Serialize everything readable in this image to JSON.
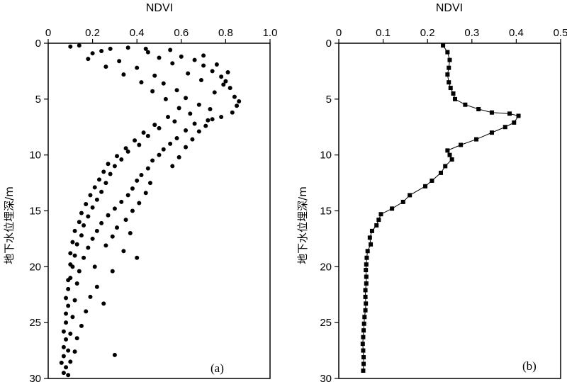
{
  "chart_data": [
    {
      "type": "scatter",
      "panel_label": "(a)",
      "xlabel": "NDVI",
      "ylabel": "地下水位埋深/m",
      "xlim": [
        0,
        1.0
      ],
      "ylim": [
        0,
        30
      ],
      "x_ticks": [
        "0",
        "0.2",
        "0.4",
        "0.6",
        "0.8",
        "1.0"
      ],
      "x_tick_values": [
        0,
        0.2,
        0.4,
        0.6,
        0.8,
        1.0
      ],
      "y_ticks": [
        "0",
        "5",
        "10",
        "15",
        "20",
        "25",
        "30"
      ],
      "y_tick_values": [
        0,
        5,
        10,
        15,
        20,
        25,
        30
      ],
      "y_inverted": true,
      "x_axis_position": "top",
      "grid": false,
      "marker_color": "#000000",
      "series": [
        {
          "points": [
            [
              0.1,
              0.3
            ],
            [
              0.28,
              0.5
            ],
            [
              0.45,
              0.8
            ],
            [
              0.55,
              0.6
            ],
            [
              0.6,
              1.2
            ],
            [
              0.66,
              1.5
            ],
            [
              0.7,
              2.0
            ],
            [
              0.74,
              2.5
            ],
            [
              0.78,
              3.0
            ],
            [
              0.8,
              3.4
            ],
            [
              0.82,
              4.0
            ],
            [
              0.84,
              4.8
            ],
            [
              0.85,
              5.6
            ],
            [
              0.83,
              6.2
            ],
            [
              0.78,
              6.6
            ],
            [
              0.72,
              6.9
            ],
            [
              0.66,
              7.2
            ],
            [
              0.62,
              7.8
            ],
            [
              0.58,
              8.5
            ],
            [
              0.55,
              9.0
            ],
            [
              0.52,
              9.5
            ],
            [
              0.5,
              10.0
            ],
            [
              0.47,
              10.5
            ],
            [
              0.45,
              11.2
            ],
            [
              0.42,
              11.8
            ],
            [
              0.4,
              12.3
            ],
            [
              0.38,
              13.0
            ],
            [
              0.36,
              13.6
            ],
            [
              0.33,
              14.2
            ],
            [
              0.3,
              14.8
            ],
            [
              0.27,
              15.4
            ],
            [
              0.24,
              16.1
            ],
            [
              0.22,
              16.8
            ],
            [
              0.2,
              17.5
            ],
            [
              0.18,
              18.3
            ],
            [
              0.16,
              19.2
            ],
            [
              0.14,
              20.4
            ],
            [
              0.13,
              21.5
            ],
            [
              0.12,
              23.0
            ],
            [
              0.11,
              24.5
            ],
            [
              0.1,
              26.0
            ],
            [
              0.09,
              27.5
            ],
            [
              0.08,
              29.0
            ],
            [
              0.14,
              0.2
            ],
            [
              0.2,
              0.9
            ],
            [
              0.32,
              1.6
            ],
            [
              0.4,
              2.2
            ],
            [
              0.48,
              2.9
            ],
            [
              0.52,
              3.6
            ],
            [
              0.58,
              4.2
            ],
            [
              0.62,
              4.9
            ],
            [
              0.68,
              5.5
            ],
            [
              0.73,
              5.9
            ],
            [
              0.64,
              6.3
            ],
            [
              0.57,
              7.0
            ],
            [
              0.5,
              7.6
            ],
            [
              0.45,
              8.3
            ],
            [
              0.41,
              9.1
            ],
            [
              0.36,
              9.7
            ],
            [
              0.33,
              10.4
            ],
            [
              0.3,
              11.0
            ],
            [
              0.28,
              11.7
            ],
            [
              0.26,
              12.5
            ],
            [
              0.24,
              13.3
            ],
            [
              0.22,
              14.0
            ],
            [
              0.2,
              14.7
            ],
            [
              0.18,
              15.5
            ],
            [
              0.16,
              16.3
            ],
            [
              0.15,
              17.2
            ],
            [
              0.13,
              18.0
            ],
            [
              0.12,
              19.0
            ],
            [
              0.11,
              20.0
            ],
            [
              0.1,
              21.0
            ],
            [
              0.09,
              22.0
            ],
            [
              0.09,
              23.5
            ],
            [
              0.08,
              25.0
            ],
            [
              0.08,
              26.5
            ],
            [
              0.07,
              28.0
            ],
            [
              0.07,
              29.5
            ],
            [
              0.7,
              1.1
            ],
            [
              0.76,
              1.9
            ],
            [
              0.81,
              2.6
            ],
            [
              0.79,
              3.7
            ],
            [
              0.86,
              5.2
            ],
            [
              0.75,
              4.4
            ],
            [
              0.69,
              3.3
            ],
            [
              0.63,
              2.7
            ],
            [
              0.56,
              1.8
            ],
            [
              0.5,
              1.3
            ],
            [
              0.44,
              0.5
            ],
            [
              0.36,
              0.4
            ],
            [
              0.24,
              0.7
            ],
            [
              0.18,
              1.4
            ],
            [
              0.26,
              2.1
            ],
            [
              0.34,
              2.8
            ],
            [
              0.42,
              3.5
            ],
            [
              0.47,
              4.3
            ],
            [
              0.53,
              5.0
            ],
            [
              0.59,
              5.8
            ],
            [
              0.54,
              6.6
            ],
            [
              0.48,
              7.3
            ],
            [
              0.43,
              8.0
            ],
            [
              0.39,
              8.7
            ],
            [
              0.35,
              9.4
            ],
            [
              0.31,
              10.1
            ],
            [
              0.27,
              10.8
            ],
            [
              0.25,
              11.5
            ],
            [
              0.23,
              12.2
            ],
            [
              0.21,
              12.9
            ],
            [
              0.19,
              13.6
            ],
            [
              0.17,
              14.4
            ],
            [
              0.15,
              15.2
            ],
            [
              0.14,
              16.0
            ],
            [
              0.12,
              16.8
            ],
            [
              0.11,
              17.8
            ],
            [
              0.1,
              18.8
            ],
            [
              0.1,
              19.8
            ],
            [
              0.09,
              21.2
            ],
            [
              0.08,
              22.8
            ],
            [
              0.08,
              24.2
            ],
            [
              0.07,
              25.8
            ],
            [
              0.07,
              27.2
            ],
            [
              0.06,
              28.6
            ],
            [
              0.46,
              12.5
            ],
            [
              0.44,
              13.4
            ],
            [
              0.41,
              14.3
            ],
            [
              0.38,
              15.0
            ],
            [
              0.35,
              15.8
            ],
            [
              0.31,
              16.5
            ],
            [
              0.29,
              17.3
            ],
            [
              0.26,
              18.1
            ],
            [
              0.4,
              19.2
            ],
            [
              0.29,
              20.4
            ],
            [
              0.22,
              21.8
            ],
            [
              0.19,
              22.7
            ],
            [
              0.17,
              24.0
            ],
            [
              0.15,
              25.3
            ],
            [
              0.13,
              26.4
            ],
            [
              0.12,
              27.6
            ],
            [
              0.1,
              28.5
            ],
            [
              0.09,
              29.7
            ],
            [
              0.56,
              11.0
            ],
            [
              0.59,
              10.2
            ],
            [
              0.62,
              9.3
            ],
            [
              0.65,
              8.6
            ],
            [
              0.68,
              7.9
            ],
            [
              0.71,
              7.4
            ],
            [
              0.74,
              6.8
            ],
            [
              0.3,
              27.9
            ],
            [
              0.25,
              23.3
            ],
            [
              0.21,
              20.0
            ],
            [
              0.34,
              18.6
            ],
            [
              0.37,
              17.0
            ]
          ]
        }
      ]
    },
    {
      "type": "line",
      "panel_label": "(b)",
      "xlabel": "NDVI",
      "ylabel": "地下水位埋深/m",
      "xlim": [
        0,
        0.5
      ],
      "ylim": [
        0,
        30
      ],
      "x_ticks": [
        "0",
        "0.1",
        "0.2",
        "0.3",
        "0.4",
        "0.5"
      ],
      "x_tick_values": [
        0,
        0.1,
        0.2,
        0.3,
        0.4,
        0.5
      ],
      "y_ticks": [
        "0",
        "5",
        "10",
        "15",
        "20",
        "25",
        "30"
      ],
      "y_tick_values": [
        0,
        5,
        10,
        15,
        20,
        25,
        30
      ],
      "y_inverted": true,
      "x_axis_position": "top",
      "grid": false,
      "marker": "square",
      "marker_color": "#000000",
      "series": [
        {
          "points": [
            [
              0.235,
              0.2
            ],
            [
              0.245,
              0.8
            ],
            [
              0.25,
              1.5
            ],
            [
              0.248,
              2.2
            ],
            [
              0.245,
              2.8
            ],
            [
              0.248,
              3.5
            ],
            [
              0.252,
              4.0
            ],
            [
              0.258,
              4.5
            ],
            [
              0.262,
              5.0
            ],
            [
              0.285,
              5.5
            ],
            [
              0.315,
              5.9
            ],
            [
              0.345,
              6.2
            ],
            [
              0.385,
              6.3
            ],
            [
              0.405,
              6.5
            ],
            [
              0.395,
              7.1
            ],
            [
              0.375,
              7.5
            ],
            [
              0.345,
              8.0
            ],
            [
              0.31,
              8.6
            ],
            [
              0.275,
              9.1
            ],
            [
              0.245,
              9.6
            ],
            [
              0.25,
              10.0
            ],
            [
              0.255,
              10.4
            ],
            [
              0.24,
              11.0
            ],
            [
              0.23,
              11.6
            ],
            [
              0.21,
              12.3
            ],
            [
              0.195,
              12.8
            ],
            [
              0.16,
              13.6
            ],
            [
              0.145,
              14.2
            ],
            [
              0.12,
              14.8
            ],
            [
              0.095,
              15.3
            ],
            [
              0.09,
              15.8
            ],
            [
              0.085,
              16.3
            ],
            [
              0.075,
              16.8
            ],
            [
              0.07,
              17.4
            ],
            [
              0.072,
              18.0
            ],
            [
              0.065,
              18.6
            ],
            [
              0.063,
              19.2
            ],
            [
              0.062,
              19.8
            ],
            [
              0.061,
              20.3
            ],
            [
              0.062,
              20.9
            ],
            [
              0.062,
              21.5
            ],
            [
              0.06,
              22.1
            ],
            [
              0.06,
              22.7
            ],
            [
              0.061,
              23.3
            ],
            [
              0.06,
              23.9
            ],
            [
              0.058,
              24.5
            ],
            [
              0.057,
              25.1
            ],
            [
              0.056,
              25.7
            ],
            [
              0.055,
              26.3
            ],
            [
              0.054,
              26.9
            ],
            [
              0.055,
              27.5
            ],
            [
              0.056,
              28.1
            ],
            [
              0.056,
              28.7
            ],
            [
              0.055,
              29.3
            ]
          ]
        }
      ]
    }
  ]
}
